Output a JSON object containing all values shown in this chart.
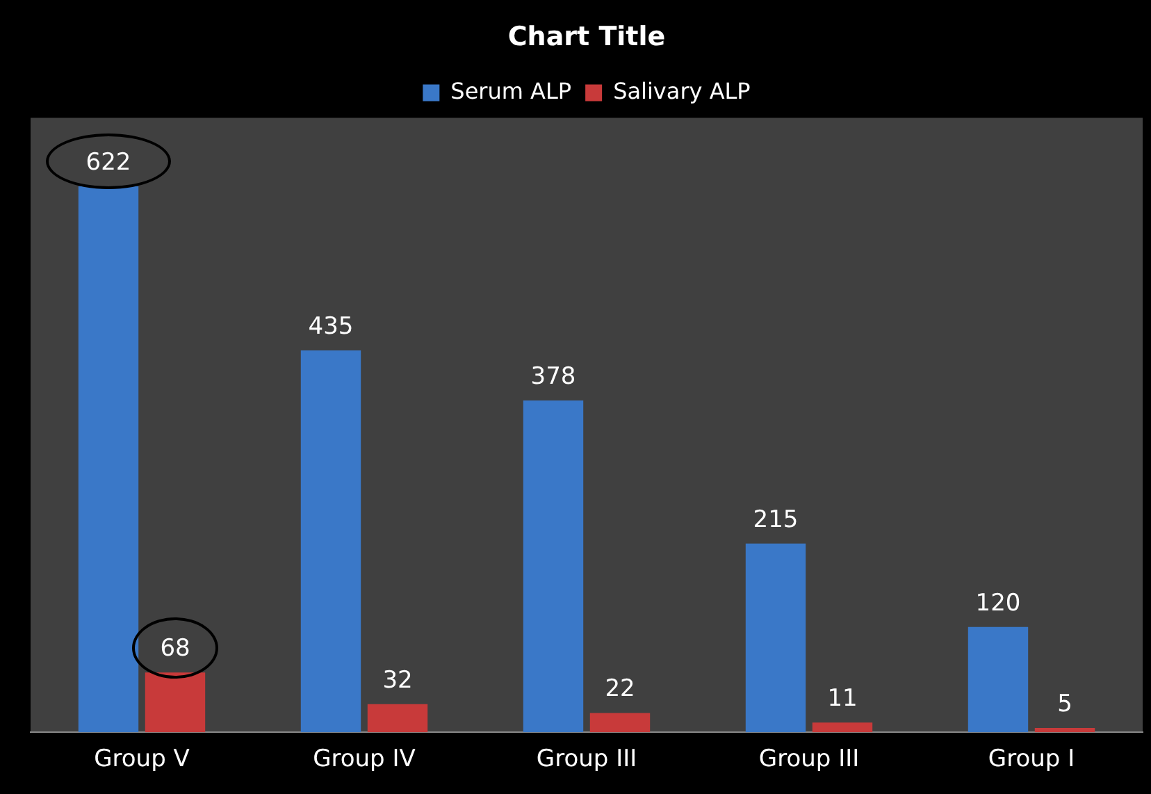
{
  "chart_data": {
    "type": "bar",
    "title": "Chart Title",
    "categories": [
      "Group V",
      "Group IV",
      "Group III",
      "Group III",
      "Group I"
    ],
    "series": [
      {
        "name": "Serum ALP",
        "color": "#3a78c8",
        "values": [
          622,
          435,
          378,
          215,
          120
        ]
      },
      {
        "name": "Salivary ALP",
        "color": "#c83a3a",
        "values": [
          68,
          32,
          22,
          11,
          5
        ]
      }
    ],
    "data_labels": true,
    "legend": "top",
    "grid": false
  }
}
